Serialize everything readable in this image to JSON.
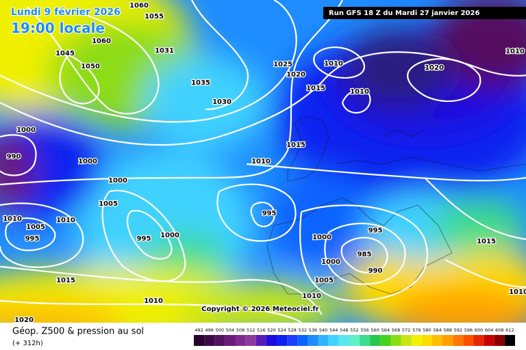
{
  "header": {
    "date": "Lundi 9 février 2026",
    "time": "19:00 locale",
    "run": "Run GFS 18 Z du Mardi 27 janvier 2026"
  },
  "copyright": "Copyright © 2026 Meteociel.fr",
  "footer": {
    "title": "Géop. Z500 & pression au sol",
    "lead": "(+ 312h)"
  },
  "isobar_labels": [
    "1060",
    "1055",
    "1060",
    "1045",
    "1050",
    "1031",
    "1025",
    "1020",
    "1010",
    "1020",
    "1010",
    "1035",
    "1015",
    "1010",
    "1030",
    "1000",
    "990",
    "1000",
    "1015",
    "1010",
    "1000",
    "1005",
    "995",
    "1010",
    "1005",
    "995",
    "1010",
    "995",
    "1000",
    "995",
    "1015",
    "1000",
    "985",
    "1000",
    "990",
    "1005",
    "1015",
    "1010",
    "1010",
    "1020",
    "1010"
  ],
  "legend": {
    "levels": [
      492,
      496,
      500,
      504,
      508,
      512,
      516,
      520,
      524,
      528,
      532,
      536,
      540,
      544,
      548,
      552,
      556,
      560,
      564,
      568,
      572,
      576,
      580,
      584,
      588,
      592,
      596,
      600,
      604,
      608,
      612
    ],
    "colors": [
      "#2a0030",
      "#3c0a48",
      "#55105e",
      "#6a1a78",
      "#7f2a8e",
      "#8d3aa0",
      "#5a1ab4",
      "#1d0ce0",
      "#1020f0",
      "#1f3cff",
      "#0a64ff",
      "#1e8cff",
      "#2eb4ff",
      "#40d2ff",
      "#5ae6f0",
      "#60f0c8",
      "#3cdc8c",
      "#28c850",
      "#46d21e",
      "#8cdc14",
      "#c8e614",
      "#f0f000",
      "#ffdc00",
      "#ffbe00",
      "#ffa000",
      "#ff7800",
      "#ff5000",
      "#e62800",
      "#c80000",
      "#8c0000",
      "#000000"
    ]
  }
}
